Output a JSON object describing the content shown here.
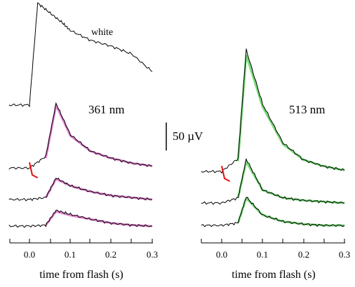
{
  "chart_data": [
    {
      "type": "line",
      "panel": "left",
      "panel_label": "361 nm",
      "extra_label": "white",
      "xlabel": "time from flash (s)",
      "x_ticks": [
        "0.0",
        "0.1",
        "0.2",
        "0.3"
      ],
      "xlim": [
        -0.05,
        0.3
      ],
      "series": [
        {
          "trace": "white",
          "color": "#000000",
          "t": [
            -0.05,
            0.0,
            0.02,
            0.05,
            0.08,
            0.1,
            0.15,
            0.2,
            0.25,
            0.3
          ],
          "v": [
            0,
            0,
            520,
            470,
            420,
            380,
            330,
            300,
            260,
            170
          ]
        },
        {
          "trace": "row-1",
          "color": "#000000",
          "t": [
            -0.05,
            0.0,
            0.04,
            0.065,
            0.1,
            0.15,
            0.2,
            0.25,
            0.3
          ],
          "v": [
            0,
            0,
            60,
            330,
            170,
            85,
            50,
            25,
            10
          ]
        },
        {
          "trace": "row-1-fit",
          "color": "#e06cc8",
          "t": [
            0.04,
            0.065,
            0.1,
            0.15,
            0.2,
            0.25,
            0.3
          ],
          "v": [
            50,
            320,
            165,
            85,
            50,
            25,
            10
          ]
        },
        {
          "trace": "row-2",
          "color": "#000000",
          "t": [
            -0.05,
            0.0,
            0.04,
            0.065,
            0.1,
            0.15,
            0.2,
            0.25,
            0.3
          ],
          "v": [
            0,
            0,
            10,
            110,
            70,
            40,
            20,
            10,
            0
          ]
        },
        {
          "trace": "row-2-fit",
          "color": "#e06cc8",
          "t": [
            0.04,
            0.065,
            0.1,
            0.15,
            0.2,
            0.25,
            0.3
          ],
          "v": [
            10,
            105,
            70,
            40,
            20,
            10,
            0
          ]
        },
        {
          "trace": "row-3",
          "color": "#000000",
          "t": [
            -0.05,
            0.0,
            0.04,
            0.065,
            0.1,
            0.15,
            0.2,
            0.25,
            0.3
          ],
          "v": [
            0,
            0,
            5,
            80,
            60,
            35,
            15,
            5,
            0
          ]
        },
        {
          "trace": "row-3-fit",
          "color": "#e06cc8",
          "t": [
            0.04,
            0.065,
            0.1,
            0.15,
            0.2,
            0.25,
            0.3
          ],
          "v": [
            5,
            75,
            55,
            35,
            15,
            5,
            0
          ]
        }
      ]
    },
    {
      "type": "line",
      "panel": "right",
      "panel_label": "513 nm",
      "xlabel": "time from flash (s)",
      "x_ticks": [
        "0.0",
        "0.1",
        "0.2",
        "0.3"
      ],
      "xlim": [
        -0.05,
        0.3
      ],
      "series": [
        {
          "trace": "row-1",
          "color": "#000000",
          "t": [
            -0.05,
            0.0,
            0.04,
            0.06,
            0.1,
            0.15,
            0.2,
            0.25,
            0.3
          ],
          "v": [
            0,
            0,
            50,
            470,
            260,
            110,
            45,
            20,
            5
          ]
        },
        {
          "trace": "row-1-fit",
          "color": "#5fd35f",
          "t": [
            0.04,
            0.06,
            0.1,
            0.15,
            0.2,
            0.25,
            0.3
          ],
          "v": [
            40,
            450,
            250,
            105,
            45,
            20,
            5
          ]
        },
        {
          "trace": "row-2",
          "color": "#000000",
          "t": [
            -0.05,
            0.0,
            0.04,
            0.06,
            0.1,
            0.15,
            0.2,
            0.25,
            0.3
          ],
          "v": [
            0,
            0,
            20,
            170,
            50,
            20,
            10,
            5,
            0
          ]
        },
        {
          "trace": "row-2-fit",
          "color": "#5fd35f",
          "t": [
            0.04,
            0.06,
            0.1,
            0.15,
            0.2,
            0.25,
            0.3
          ],
          "v": [
            20,
            160,
            50,
            20,
            10,
            5,
            0
          ]
        },
        {
          "trace": "row-3",
          "color": "#000000",
          "t": [
            -0.05,
            0.0,
            0.04,
            0.06,
            0.1,
            0.15,
            0.2,
            0.25,
            0.3
          ],
          "v": [
            0,
            0,
            10,
            110,
            40,
            15,
            5,
            0,
            0
          ]
        },
        {
          "trace": "row-3-fit",
          "color": "#5fd35f",
          "t": [
            0.04,
            0.06,
            0.1,
            0.15,
            0.2,
            0.25,
            0.3
          ],
          "v": [
            10,
            105,
            40,
            15,
            5,
            0,
            0
          ]
        }
      ]
    }
  ],
  "scale_bar": {
    "value": 50,
    "unit": "µV",
    "label": "50 µV"
  },
  "colors": {
    "data_trace": "#000000",
    "fit_361": "#e06cc8",
    "fit_513": "#5fd35f",
    "pre_flash_marker": "#e01010"
  }
}
